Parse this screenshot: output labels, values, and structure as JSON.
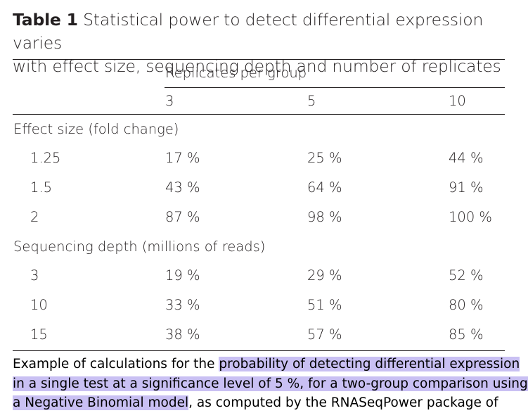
{
  "caption": {
    "label": "Table 1",
    "line1": "Statistical power to detect differential expression varies",
    "line2": "with effect size, sequencing depth and number of replicates"
  },
  "table": {
    "spanner_header": "Replicates per group",
    "columns": [
      "3",
      "5",
      "10"
    ],
    "groups": [
      {
        "title": "Effect size (fold change)",
        "rows": [
          {
            "label": "1.25",
            "values": [
              "17 %",
              "25 %",
              "44 %"
            ]
          },
          {
            "label": "1.5",
            "values": [
              "43 %",
              "64 %",
              "91 %"
            ]
          },
          {
            "label": "2",
            "values": [
              "87 %",
              "98 %",
              "100 %"
            ]
          }
        ]
      },
      {
        "title": "Sequencing depth (millions of reads)",
        "rows": [
          {
            "label": "3",
            "values": [
              "19 %",
              "29 %",
              "52 %"
            ]
          },
          {
            "label": "10",
            "values": [
              "33 %",
              "51 %",
              "80 %"
            ]
          },
          {
            "label": "15",
            "values": [
              "38 %",
              "57 %",
              "85 %"
            ]
          }
        ]
      }
    ]
  },
  "footnote": {
    "line1_plain": "Example of calculations for the ",
    "line1_highlight": "probability of detecting differential expression",
    "line2_highlight": "in a single test at a significance level of 5 %, for a two-group comparison using",
    "line3_highlight": "a Negative Binomial model",
    "line3_plain": ", as computed by the RNASeqPower package of",
    "highlight_color": "#c9c0f3"
  }
}
